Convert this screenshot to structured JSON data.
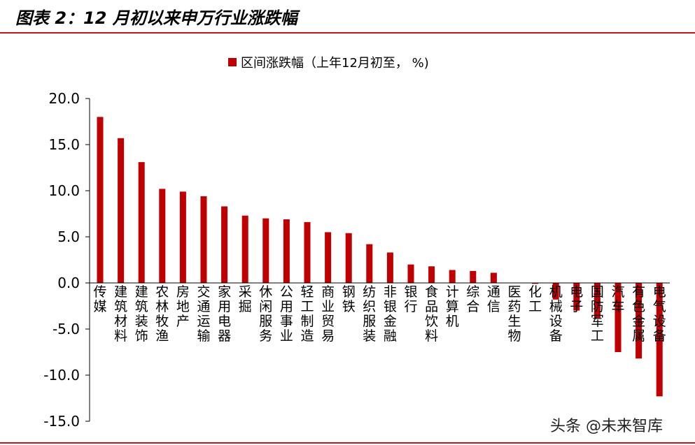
{
  "header": {
    "title": "图表 2：12 月初以来申万行业涨跌幅"
  },
  "watermark": "头条 @未来智库",
  "chart_data": {
    "type": "bar",
    "title": "图表 2：12 月初以来申万行业涨跌幅",
    "legend": "区间涨跌幅（上年12月初至，  %)",
    "legend_position": "top-center",
    "grid": false,
    "ylim": [
      -15,
      20
    ],
    "yticks": [
      "20.0",
      "15.0",
      "10.0",
      "5.0",
      "0.0",
      "-5.0",
      "-10.0",
      "-15.0"
    ],
    "bar_color": "#c00000",
    "categories": [
      "传媒",
      "建筑材料",
      "建筑装饰",
      "农林牧渔",
      "房地产",
      "交通运输",
      "家用电器",
      "采掘",
      "休闲服务",
      "公用事业",
      "轻工制造",
      "商业贸易",
      "钢铁",
      "纺织服装",
      "非银金融",
      "银行",
      "食品饮料",
      "计算机",
      "综合",
      "通信",
      "医药生物",
      "化工",
      "机械设备",
      "电子",
      "国防军工",
      "汽车",
      "有色金属",
      "电气设备"
    ],
    "series": [
      {
        "name": "区间涨跌幅（上年12月初至，  %)",
        "values": [
          18.0,
          15.7,
          13.1,
          10.2,
          9.9,
          9.4,
          8.3,
          7.3,
          7.0,
          6.9,
          6.6,
          5.5,
          5.4,
          4.2,
          3.3,
          2.0,
          1.8,
          1.4,
          1.3,
          1.1,
          0.0,
          -0.1,
          -1.8,
          -3.0,
          -3.8,
          -7.5,
          -8.2,
          -12.3
        ]
      }
    ]
  }
}
